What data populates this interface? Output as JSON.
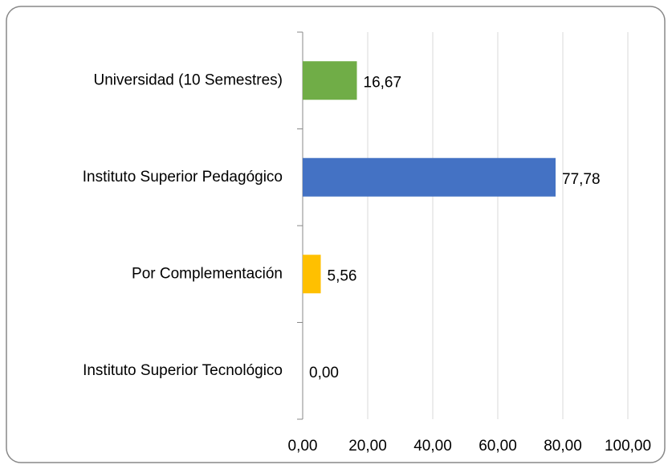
{
  "chart_data": {
    "type": "hbar",
    "categories": [
      "Universidad (10 Semestres)",
      "Instituto Superior Pedagógico",
      "Por Complementación",
      "Instituto Superior Tecnológico"
    ],
    "values": [
      16.67,
      77.78,
      5.56,
      0
    ],
    "value_labels": [
      "16,67",
      "77,78",
      "5,56",
      "0,00"
    ],
    "colors": [
      "#70ad47",
      "#4472c4",
      "#ffc000",
      "#a5a5a5"
    ],
    "xlim": [
      0,
      100
    ],
    "xticks": [
      {
        "value": 0,
        "label": "0,00"
      },
      {
        "value": 20,
        "label": "20,00"
      },
      {
        "value": 40,
        "label": "40,00"
      },
      {
        "value": 60,
        "label": "60,00"
      },
      {
        "value": 80,
        "label": "80,00"
      },
      {
        "value": 100,
        "label": "100,00"
      }
    ],
    "grid": true
  }
}
